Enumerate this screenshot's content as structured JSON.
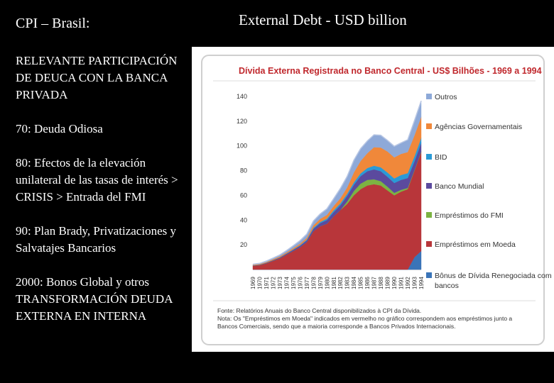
{
  "left": {
    "title": "CPI – Brasil:",
    "paragraphs": [
      "RELEVANTE PARTICIPACIÓN DE DEUCA CON LA BANCA PRIVADA",
      "70: Deuda Odiosa",
      "80: Efectos de la elevación unilateral de las tasas de interés > CRISIS > Entrada del FMI",
      "90: Plan Brady, Privatizaciones y Salvatajes Bancarios",
      "2000:  Bonos Global y otros TRANSFORMACIÓN DEUDA EXTERNA EN INTERNA"
    ]
  },
  "right": {
    "title": "External Debt - USD billion"
  },
  "chart_data": {
    "type": "area",
    "title": "Dívida Externa  Registrada no Banco Central - US$ Bilhões - 1969 a 1994",
    "categories": [
      "1969",
      "1970",
      "1971",
      "1972",
      "1973",
      "1974",
      "1975",
      "1976",
      "1977",
      "1978",
      "1979",
      "1980",
      "1981",
      "1982",
      "1983",
      "1984",
      "1985",
      "1986",
      "1987",
      "1988",
      "1989",
      "1990",
      "1991",
      "1992",
      "1993",
      "1994"
    ],
    "ylim": [
      0,
      140
    ],
    "yticks": [
      "140",
      "120",
      "100",
      "80",
      "60",
      "40",
      "20"
    ],
    "series": [
      {
        "name": "Bônus de Dívida Renegociada com bancos",
        "color": "#3a74b8",
        "values": [
          0,
          0,
          0,
          0,
          0,
          0,
          0,
          0,
          0,
          0,
          0,
          0,
          0,
          0,
          0,
          0,
          0,
          0,
          0,
          0,
          0,
          0,
          0,
          0,
          10,
          15
        ]
      },
      {
        "name": "Empréstimos em Moeda",
        "color": "#b8363a",
        "values": [
          3,
          3.5,
          5,
          7,
          9,
          12,
          15,
          18,
          22,
          31,
          35,
          37,
          43,
          48,
          53,
          60,
          65,
          68,
          69,
          68,
          64,
          60,
          63,
          65,
          70,
          80
        ]
      },
      {
        "name": "Empréstimos do FMI",
        "color": "#7cb342",
        "values": [
          0,
          0,
          0,
          0,
          0,
          0,
          0,
          0,
          0,
          0,
          0,
          0,
          0,
          0,
          2,
          3.5,
          4.5,
          4.5,
          4,
          3.5,
          3,
          2,
          1.5,
          1,
          0.5,
          0.5
        ]
      },
      {
        "name": "Banco Mundial",
        "color": "#5b4a9e",
        "values": [
          0.3,
          0.4,
          0.5,
          0.6,
          0.7,
          0.8,
          1,
          1.2,
          1.5,
          2,
          2.5,
          3,
          3.5,
          4,
          4.5,
          5,
          6,
          7,
          8,
          8,
          8,
          8,
          8,
          8,
          7,
          7
        ]
      },
      {
        "name": "BID",
        "color": "#2a9ad6",
        "values": [
          0,
          0,
          0,
          0,
          0.1,
          0.2,
          0.3,
          0.5,
          0.6,
          0.8,
          1,
          1.2,
          1.4,
          1.6,
          1.8,
          2,
          2.3,
          2.6,
          3,
          3.2,
          3.5,
          3.7,
          4,
          4,
          4,
          4
        ]
      },
      {
        "name": "Agências Governamentais",
        "color": "#f0883a",
        "values": [
          0.5,
          0.5,
          0.6,
          0.7,
          0.8,
          0.9,
          1,
          1.2,
          1.5,
          2,
          2.5,
          3,
          3.5,
          4,
          5,
          8,
          10,
          12,
          15,
          16,
          17,
          17,
          17,
          17,
          17,
          17
        ]
      },
      {
        "name": "Outros",
        "color": "#8ea9d8",
        "values": [
          0.5,
          0.6,
          0.8,
          1,
          1.2,
          1.5,
          2,
          2.5,
          3,
          3.5,
          4,
          5,
          6,
          8,
          9,
          10,
          10,
          10,
          10,
          10,
          9,
          9,
          9,
          10,
          12,
          13
        ]
      }
    ],
    "legend_order": [
      "Outros",
      "Agências Governamentais",
      "BID",
      "Banco Mundial",
      "Empréstimos do FMI",
      "Empréstimos em Moeda",
      "Bônus de Dívida Renegociada com bancos"
    ],
    "legend_position": "right",
    "source": [
      "Fonte: Relatórios Anuais do Banco Central disponibilizados à CPI da Dívida.",
      "Nota: Os \"Empréstimos em Moeda\" indicados em vermelho no gráfico correspondem aos empréstimos junto a",
      "Bancos Comerciais, sendo que a maioria corresponde a Bancos Privados Internacionais."
    ]
  }
}
